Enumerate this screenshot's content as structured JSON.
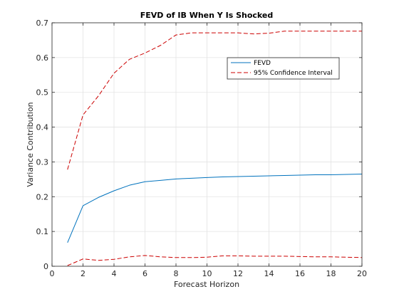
{
  "chart_data": {
    "type": "line",
    "title": "FEVD of IB When Y Is Shocked",
    "xlabel": "Forecast Horizon",
    "ylabel": "Variance Contribution",
    "xlim": [
      0,
      20
    ],
    "ylim": [
      0,
      0.7
    ],
    "xticks": [
      0,
      2,
      4,
      6,
      8,
      10,
      12,
      14,
      16,
      18,
      20
    ],
    "yticks": [
      0,
      0.1,
      0.2,
      0.3,
      0.4,
      0.5,
      0.6,
      0.7
    ],
    "xtick_labels": [
      "0",
      "2",
      "4",
      "6",
      "8",
      "10",
      "12",
      "14",
      "16",
      "18",
      "20"
    ],
    "ytick_labels": [
      "0",
      "0.1",
      "0.2",
      "0.3",
      "0.4",
      "0.5",
      "0.6",
      "0.7"
    ],
    "grid": true,
    "legend_position": "top-right",
    "x": [
      1,
      2,
      3,
      4,
      5,
      6,
      7,
      8,
      9,
      10,
      11,
      12,
      13,
      14,
      15,
      16,
      17,
      18,
      19,
      20
    ],
    "series": [
      {
        "name": "FEVD",
        "color": "#0072BD",
        "style": "solid",
        "values": [
          0.068,
          0.174,
          0.198,
          0.217,
          0.233,
          0.243,
          0.247,
          0.251,
          0.253,
          0.255,
          0.257,
          0.258,
          0.259,
          0.26,
          0.261,
          0.262,
          0.263,
          0.263,
          0.264,
          0.265
        ]
      },
      {
        "name": "95% Confidence Interval",
        "color": "#CC0000",
        "style": "dashed",
        "values": [
          0.278,
          0.435,
          0.49,
          0.555,
          0.595,
          0.613,
          0.635,
          0.665,
          0.671,
          0.671,
          0.671,
          0.671,
          0.668,
          0.67,
          0.676,
          0.676,
          0.676,
          0.676,
          0.676,
          0.676
        ]
      },
      {
        "name": "",
        "legend": false,
        "color": "#CC0000",
        "style": "dashed",
        "values": [
          0.002,
          0.021,
          0.017,
          0.02,
          0.027,
          0.031,
          0.027,
          0.025,
          0.025,
          0.026,
          0.03,
          0.03,
          0.029,
          0.029,
          0.029,
          0.028,
          0.027,
          0.027,
          0.026,
          0.025
        ]
      }
    ]
  }
}
